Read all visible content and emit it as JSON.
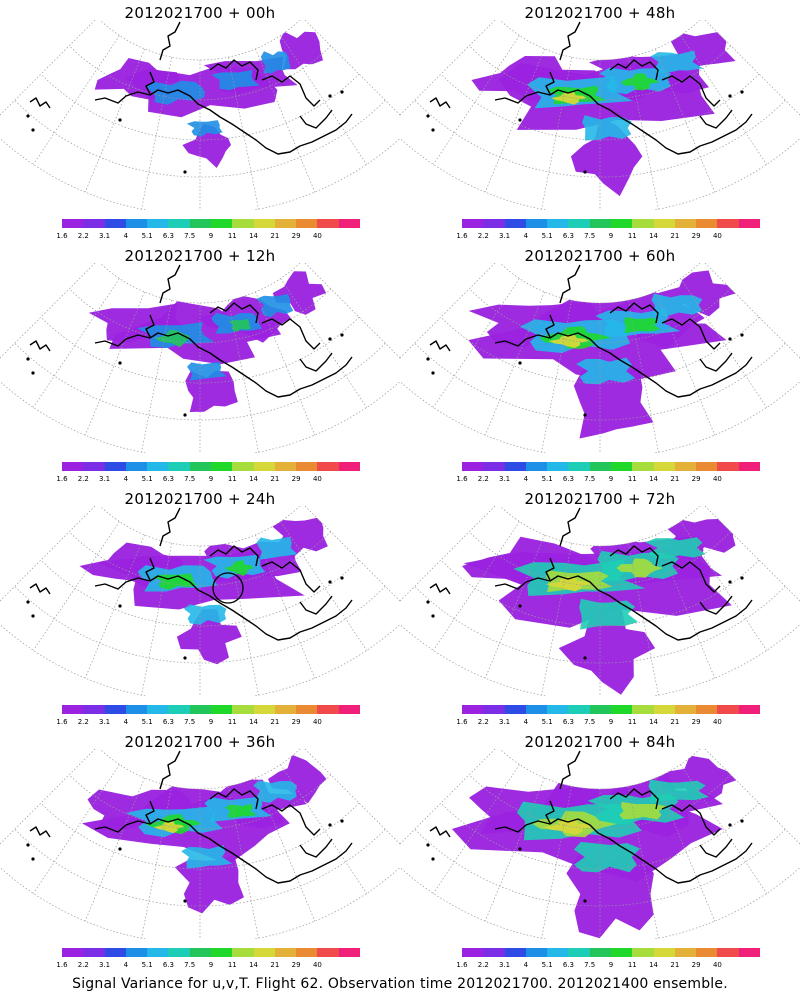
{
  "panels": [
    {
      "title": "2012021700 + 00h",
      "lead": 0
    },
    {
      "title": "2012021700 + 48h",
      "lead": 48
    },
    {
      "title": "2012021700 + 12h",
      "lead": 12
    },
    {
      "title": "2012021700 + 60h",
      "lead": 60
    },
    {
      "title": "2012021700 + 24h",
      "lead": 24
    },
    {
      "title": "2012021700 + 72h",
      "lead": 72
    },
    {
      "title": "2012021700 + 36h",
      "lead": 36
    },
    {
      "title": "2012021700 + 84h",
      "lead": 84
    }
  ],
  "colorbar": {
    "labels": [
      "1.6",
      "2.2",
      "3.1",
      "4",
      "5.1",
      "6.3",
      "7.5",
      "9",
      "11",
      "14",
      "21",
      "29",
      "40"
    ],
    "colors": [
      "#9b22e0",
      "#7c2ee6",
      "#2f4be6",
      "#1e8fe6",
      "#23b8e8",
      "#1ecdb5",
      "#22c55a",
      "#1fd82a",
      "#a6dc3c",
      "#d6d83a",
      "#e3b137",
      "#ea8b33",
      "#f04a4a",
      "#f01f7a"
    ]
  },
  "footer": "Signal Variance for u,v,T. Flight 62. Observation time 2012021700. 2012021400 ensemble."
}
